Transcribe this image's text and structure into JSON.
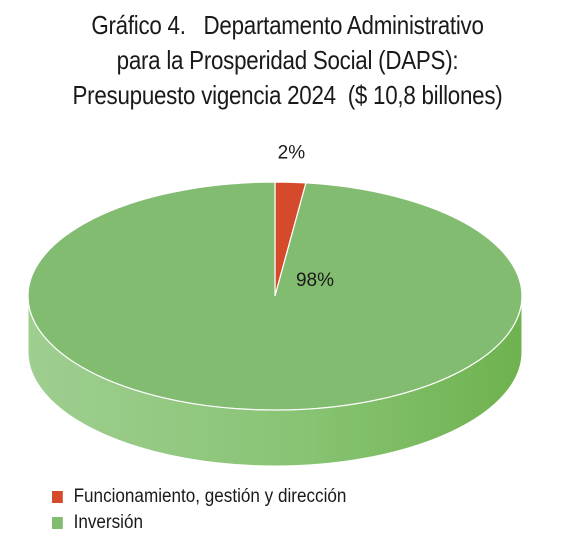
{
  "title_lines": [
    "Gráfico 4.   Departamento Administrativo",
    "para la Prosperidad Social (DAPS):",
    "Presupuesto vigencia 2024  ($ 10,8 billones)"
  ],
  "chart_data": {
    "type": "pie",
    "style": "3d",
    "slices": [
      {
        "label": "Funcionamiento, gestión y dirección",
        "value": 2,
        "display": "2%",
        "color": "#d64a2c"
      },
      {
        "label": "Inversión",
        "value": 98,
        "display": "98%",
        "color": "#82bc71"
      }
    ],
    "legend_position": "bottom-left"
  }
}
